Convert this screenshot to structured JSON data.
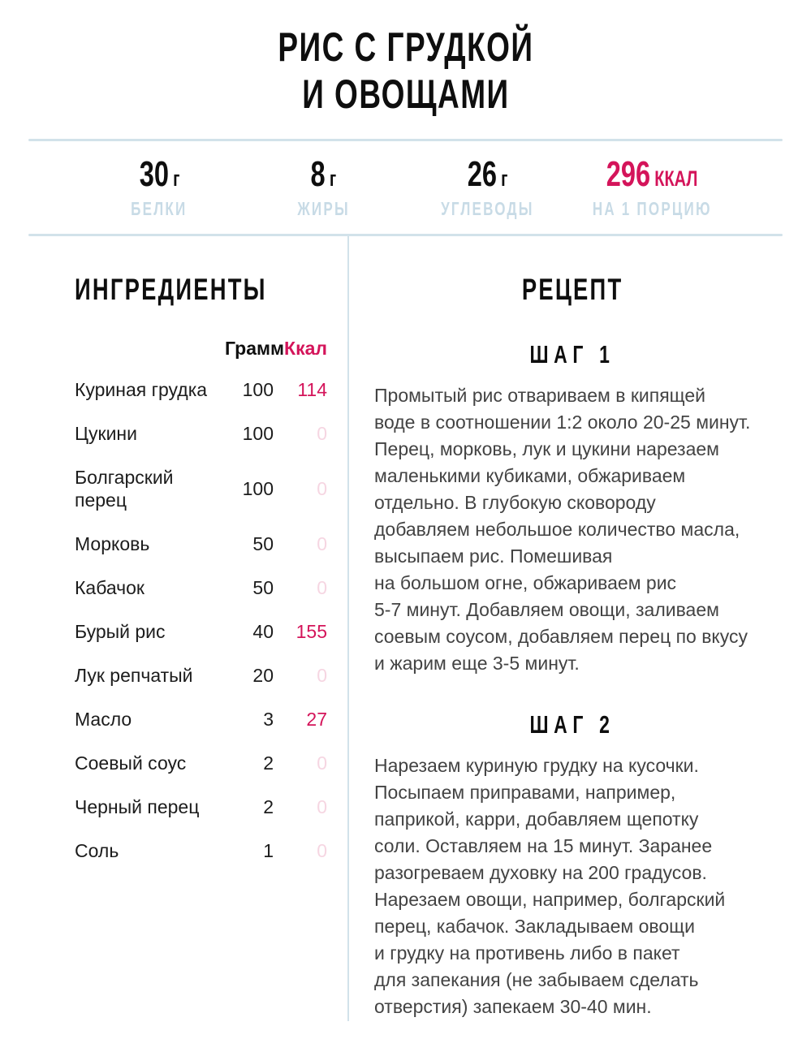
{
  "title": "РИС С ГРУДКОЙ\nИ ОВОЩАМИ",
  "colors": {
    "accent": "#d4145a",
    "kcal-muted": "#f6d6e2",
    "label-blue": "#c8dbe6",
    "divider": "#d2e2ea",
    "text-dark": "#101010",
    "text-body": "#434343"
  },
  "nutrition": {
    "items": [
      {
        "value": "30",
        "unit": "г",
        "label": "БЕЛКИ",
        "accent": false
      },
      {
        "value": "8",
        "unit": "г",
        "label": "ЖИРЫ",
        "accent": false
      },
      {
        "value": "26",
        "unit": "г",
        "label": "УГЛЕВОДЫ",
        "accent": false
      },
      {
        "value": "296",
        "unit": "ККАЛ",
        "label": "НА 1 ПОРЦИЮ",
        "accent": true
      }
    ]
  },
  "ingredients": {
    "heading": "ИНГРЕДИЕНТЫ",
    "col_grams": "Грамм",
    "col_kcal": "Ккал",
    "rows": [
      {
        "name": "Куриная грудка",
        "grams": "100",
        "kcal": "114"
      },
      {
        "name": "Цукини",
        "grams": "100",
        "kcal": "0"
      },
      {
        "name": "Болгарский перец",
        "grams": "100",
        "kcal": "0"
      },
      {
        "name": "Морковь",
        "grams": "50",
        "kcal": "0"
      },
      {
        "name": "Кабачок",
        "grams": "50",
        "kcal": "0"
      },
      {
        "name": "Бурый рис",
        "grams": "40",
        "kcal": "155"
      },
      {
        "name": "Лук репчатый",
        "grams": "20",
        "kcal": "0"
      },
      {
        "name": "Масло",
        "grams": "3",
        "kcal": "27"
      },
      {
        "name": "Соевый соус",
        "grams": "2",
        "kcal": "0"
      },
      {
        "name": "Черный перец",
        "grams": "2",
        "kcal": "0"
      },
      {
        "name": "Соль",
        "grams": "1",
        "kcal": "0"
      }
    ]
  },
  "recipe": {
    "heading": "РЕЦЕПТ",
    "steps": [
      {
        "title": "ШАГ 1",
        "text": "Промытый рис отвариваем в кипящей\nводе в соотношении 1:2 около 20-25 минут.\nПерец, морковь, лук и цукини нарезаем\nмаленькими кубиками, обжариваем\nотдельно. В глубокую сковороду\nдобавляем небольшое количество масла,\nвысыпаем рис. Помешивая\nна большом огне, обжариваем рис\n5-7 минут. Добавляем овощи, заливаем\nсоевым соусом, добавляем перец по вкусу\nи жарим еще 3-5 минут."
      },
      {
        "title": "ШАГ 2",
        "text": "Нарезаем куриную грудку на кусочки.\nПосыпаем приправами, например,\nпаприкой, карри, добавляем щепотку\nсоли. Оставляем на 15 минут. Заранее\nразогреваем духовку на 200 градусов.\nНарезаем овощи, например, болгарский\nперец, кабачок. Закладываем овощи\nи грудку на противень либо в пакет\nдля запекания (не забываем сделать\nотверстия) запекаем 30-40 мин."
      }
    ]
  }
}
